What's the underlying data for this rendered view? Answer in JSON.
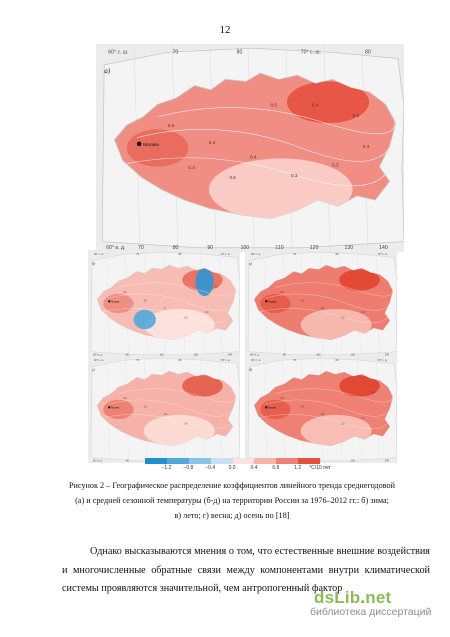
{
  "page": {
    "number": "12"
  },
  "figure": {
    "city_label": "Москва",
    "panels": [
      {
        "id": "a",
        "letter": "а)",
        "top_labels": [
          "60° с. ш.",
          "70",
          "80",
          "70° с. ш.",
          "80"
        ],
        "bottom_labels": [
          "60° в. д.",
          "70",
          "80",
          "90",
          "100",
          "110",
          "120",
          "130",
          "140"
        ],
        "isolines": [
          "0.5",
          "0.4",
          "0.4",
          "0.3",
          "0.3",
          "0.2",
          "0.4",
          "0.5",
          "0.6",
          "0.4",
          "0.3"
        ],
        "colors": {
          "base": "#f08e84",
          "dark": "#e5503f",
          "light": "#fbd6d0"
        }
      },
      {
        "id": "b",
        "letter": "б)",
        "top_labels": [
          "60° с. ш.",
          "70",
          "80",
          "70° с. ш."
        ],
        "bottom_labels": [
          "60° в. д.",
          "80",
          "100",
          "120",
          "140"
        ],
        "isolines": [
          "0.9",
          "0.6",
          "0",
          "0.3",
          "-0.3",
          "0.3"
        ],
        "colors": {
          "base": "#f7bdb4",
          "dark": "#e86a5a",
          "light": "#fde8e4"
        }
      },
      {
        "id": "v",
        "letter": "в)",
        "top_labels": [
          "60° с. ш.",
          "70",
          "80",
          "70° с. ш."
        ],
        "bottom_labels": [
          "60° в. д.",
          "80",
          "100",
          "120",
          "140"
        ],
        "isolines": [
          "0.5",
          "0.6",
          "0.4",
          "0.3",
          "0.2"
        ],
        "colors": {
          "base": "#ee7d70",
          "dark": "#e2442f",
          "light": "#f8c2b9"
        }
      },
      {
        "id": "g",
        "letter": "г)",
        "top_labels": [
          "60° с. ш.",
          "70",
          "80",
          "70° с. ш."
        ],
        "bottom_labels": [
          "60° в. д.",
          "80",
          "100",
          "120",
          "140"
        ],
        "isolines": [
          "0.5",
          "0.3",
          "0.2",
          "0.4"
        ],
        "colors": {
          "base": "#f6b2a8",
          "dark": "#e65a48",
          "light": "#fde1dc"
        }
      },
      {
        "id": "d",
        "letter": "д)",
        "top_labels": [
          "60° с. ш.",
          "70",
          "80",
          "70° с. ш."
        ],
        "bottom_labels": [
          "60° в. д.",
          "80",
          "100",
          "120",
          "140"
        ],
        "isolines": [
          "0.5",
          "0.4",
          "0.6",
          "0.5",
          "0.7",
          "0.4"
        ],
        "colors": {
          "base": "#ee8074",
          "dark": "#e0432f",
          "light": "#f9c8c0"
        }
      }
    ],
    "colorbar": {
      "ticks": [
        "−1.2",
        "−0.8",
        "−0.4",
        "0.0",
        "0.4",
        "0.8",
        "1.2"
      ],
      "unit": "°С/10 лет",
      "colors": [
        "#1e8fd0",
        "#4fa9dc",
        "#8ac4e6",
        "#c7e1f2",
        "#fde5df",
        "#f7b3a8",
        "#ef8174",
        "#e4503e"
      ]
    },
    "caption": {
      "line1": "Рисунок 2 – Географическое распределение коэффициентов линейного тренда среднегодовой",
      "line2": "(а) и средней сезонной температуры (б-д) на территории России за 1976–2012 гг.: б) зима;",
      "line3": "в) лето; г) весна; д) осень по [18]"
    }
  },
  "body": {
    "paragraph": "Однако высказываются мнения о том, что естественные внешние воздействия и многочисленные обратные связи между компонентами внутри климатической системы проявляются значительной, чем антропогенный фактор"
  },
  "watermark": {
    "logo_main": "dsLib",
    "logo_dot": ".",
    "logo_tld": "net",
    "subtitle": "библиотека диссертаций"
  }
}
